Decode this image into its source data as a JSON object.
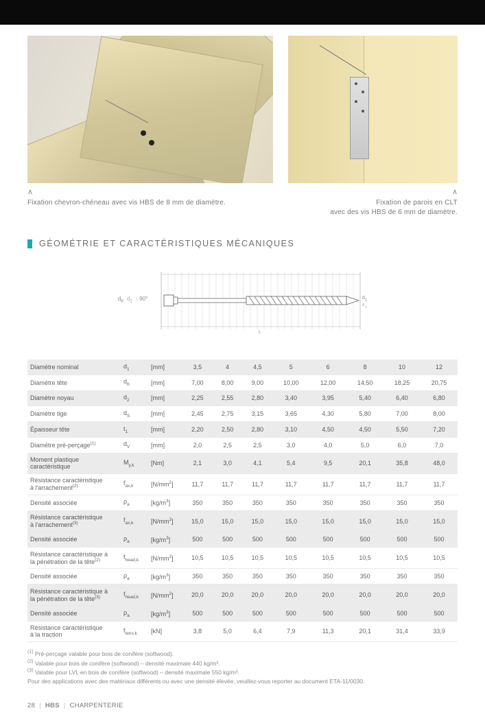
{
  "captions": {
    "left": "Fixation chevron-chéneau avec vis HBS de 8 mm de diamètre.",
    "right_line1": "Fixation de parois en CLT",
    "right_line2": "avec des vis HBS de 6 mm de diamètre."
  },
  "section_title": "GÉOMÉTRIE ET CARACTÉRISTIQUES MÉCANIQUES",
  "diagram": {
    "dim_left": "dK",
    "dim_head_label": "d2",
    "dim_right": "d1",
    "tip_label": "dS",
    "length_label": "L"
  },
  "table": {
    "header": [
      "Diamètre nominal",
      "d1",
      "[mm]",
      "3,5",
      "4",
      "4,5",
      "5",
      "6",
      "8",
      "10",
      "12"
    ],
    "rows": [
      {
        "shaded": false,
        "label": "Diamètre tête",
        "sym": "d<sub>K</sub>",
        "unit": "[mm]",
        "v": [
          "7,00",
          "8,00",
          "9,00",
          "10,00",
          "12,00",
          "14,50",
          "18,25",
          "20,75"
        ]
      },
      {
        "shaded": true,
        "label": "Diamètre noyau",
        "sym": "d<sub>2</sub>",
        "unit": "[mm]",
        "v": [
          "2,25",
          "2,55",
          "2,80",
          "3,40",
          "3,95",
          "5,40",
          "6,40",
          "6,80"
        ]
      },
      {
        "shaded": false,
        "label": "Diamètre tige",
        "sym": "d<sub>S</sub>",
        "unit": "[mm]",
        "v": [
          "2,45",
          "2,75",
          "3,15",
          "3,65",
          "4,30",
          "5,80",
          "7,00",
          "8,00"
        ]
      },
      {
        "shaded": true,
        "label": "Épaisseur tête",
        "sym": "t<sub>1</sub>",
        "unit": "[mm]",
        "v": [
          "2,20",
          "2,50",
          "2,80",
          "3,10",
          "4,50",
          "4,50",
          "5,50",
          "7,20"
        ]
      },
      {
        "shaded": false,
        "label": "Diamètre pré-perçage<sup>(1)</sup>",
        "sym": "d<sub>V</sub>",
        "unit": "[mm]",
        "v": [
          "2,0",
          "2,5",
          "2,5",
          "3,0",
          "4,0",
          "5,0",
          "6,0",
          "7,0"
        ]
      },
      {
        "shaded": true,
        "label": "Moment plastique<br>caractéristique",
        "sym": "M<sub>y,k</sub>",
        "unit": "[Nm]",
        "v": [
          "2,1",
          "3,0",
          "4,1",
          "5,4",
          "9,5",
          "20,1",
          "35,8",
          "48,0"
        ]
      },
      {
        "shaded": false,
        "label": "Résistance caractéristique<br>à l'arrachement<sup>(2)</sup>",
        "sym": "f<sub>ax,k</sub>",
        "unit": "[N/mm<sup>2</sup>]",
        "v": [
          "11,7",
          "11,7",
          "11,7",
          "11,7",
          "11,7",
          "11,7",
          "11,7",
          "11,7"
        ]
      },
      {
        "shaded": false,
        "label": "Densité associée",
        "sym": "ρ<sub>a</sub>",
        "unit": "[kg/m<sup>3</sup>]",
        "v": [
          "350",
          "350",
          "350",
          "350",
          "350",
          "350",
          "350",
          "350"
        ]
      },
      {
        "shaded": true,
        "label": "Résistance caractéristique<br>à l'arrachement<sup>(3)</sup>",
        "sym": "f<sub>ax,k</sub>",
        "unit": "[N/mm<sup>2</sup>]",
        "v": [
          "15,0",
          "15,0",
          "15,0",
          "15,0",
          "15,0",
          "15,0",
          "15,0",
          "15,0"
        ]
      },
      {
        "shaded": true,
        "label": "Densité associée",
        "sym": "ρ<sub>a</sub>",
        "unit": "[kg/m<sup>3</sup>]",
        "v": [
          "500",
          "500",
          "500",
          "500",
          "500",
          "500",
          "500",
          "500"
        ]
      },
      {
        "shaded": false,
        "label": "Résistance caractéristique à<br>la pénétration de la tête<sup>(2)</sup>",
        "sym": "f<sub>head,k</sub>",
        "unit": "[N/mm<sup>2</sup>]",
        "v": [
          "10,5",
          "10,5",
          "10,5",
          "10,5",
          "10,5",
          "10,5",
          "10,5",
          "10,5"
        ]
      },
      {
        "shaded": false,
        "label": "Densité associée",
        "sym": "ρ<sub>a</sub>",
        "unit": "[kg/m<sup>3</sup>]",
        "v": [
          "350",
          "350",
          "350",
          "350",
          "350",
          "350",
          "350",
          "350"
        ]
      },
      {
        "shaded": true,
        "label": "Résistance caractéristique à<br>la pénétration de la tête<sup>(3)</sup>",
        "sym": "f<sub>head,k</sub>",
        "unit": "[N/mm<sup>2</sup>]",
        "v": [
          "20,0",
          "20,0",
          "20,0",
          "20,0",
          "20,0",
          "20,0",
          "20,0",
          "20,0"
        ]
      },
      {
        "shaded": true,
        "label": "Densité associée",
        "sym": "ρ<sub>a</sub>",
        "unit": "[kg/m<sup>3</sup>]",
        "v": [
          "500",
          "500",
          "500",
          "500",
          "500",
          "500",
          "500",
          "500"
        ]
      },
      {
        "shaded": false,
        "label": "Résistance caractéristique<br>à la traction",
        "sym": "f<sub>tens,k</sub>",
        "unit": "[kN]",
        "v": [
          "3,8",
          "5,0",
          "6,4",
          "7,9",
          "11,3",
          "20,1",
          "31,4",
          "33,9"
        ]
      }
    ]
  },
  "footnotes": {
    "f1": "(1) Pré-perçage valable pour bois de conifère (softwood).",
    "f2": "(2) Valable pour bois de conifère (softwood) – densité maximale 440 kg/m³.",
    "f3": "(3) Valable pour LVL en bois de conifère (softwood) – densité maximale 550 kg/m³.",
    "f4": "Pour des applications avec des matériaux différents ou avec une densité élevée, veuillez-vous reporter au document ETA-11/0030."
  },
  "footer": {
    "page": "28",
    "product": "HBS",
    "category": "CHARPENTERIE"
  },
  "colors": {
    "accent": "#16a9b0",
    "shaded_row": "#ebebeb",
    "text_main": "#666666",
    "black": "#0a0a0a"
  }
}
